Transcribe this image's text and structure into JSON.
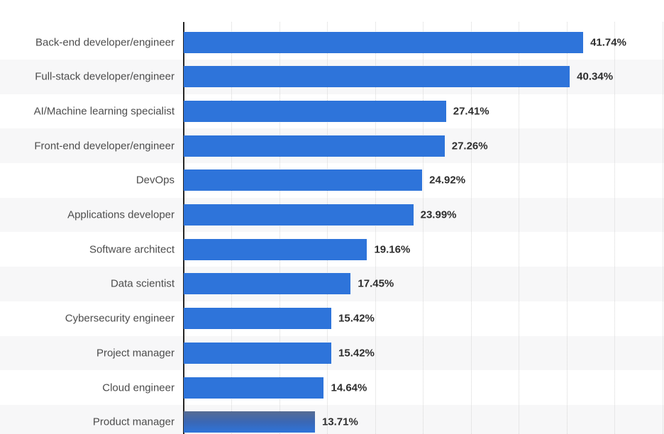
{
  "chart_data": {
    "type": "bar",
    "orientation": "horizontal",
    "title": "",
    "xlabel": "",
    "ylabel": "",
    "categories": [
      "Back-end developer/engineer",
      "Full-stack developer/engineer",
      "AI/Machine learning specialist",
      "Front-end developer/engineer",
      "DevOps",
      "Applications developer",
      "Software architect",
      "Data scientist",
      "Cybersecurity engineer",
      "Project manager",
      "Cloud engineer",
      "Product manager"
    ],
    "values": [
      41.74,
      40.34,
      27.41,
      27.26,
      24.92,
      23.99,
      19.16,
      17.45,
      15.42,
      15.42,
      14.64,
      13.71
    ],
    "value_labels": [
      "41.74%",
      "40.34%",
      "27.41%",
      "27.26%",
      "24.92%",
      "23.99%",
      "19.16%",
      "17.45%",
      "15.42%",
      "15.42%",
      "14.64%",
      "13.71%"
    ],
    "xlim": [
      0,
      50
    ],
    "gridline_step_percent": 5,
    "grid": "dotted-vertical",
    "legend": "none",
    "bar_color": "#2e74da",
    "highlighted_bar_index": 11,
    "highlight_gradient_top": "#566c93",
    "highlight_gradient_mid": "#3a67b5",
    "alternate_row_color": "#f7f7f8",
    "axis_color": "#262626",
    "gridline_color": "#d6d6d6",
    "label_color": "#4c4c4c",
    "value_color": "#2e2e2e"
  }
}
